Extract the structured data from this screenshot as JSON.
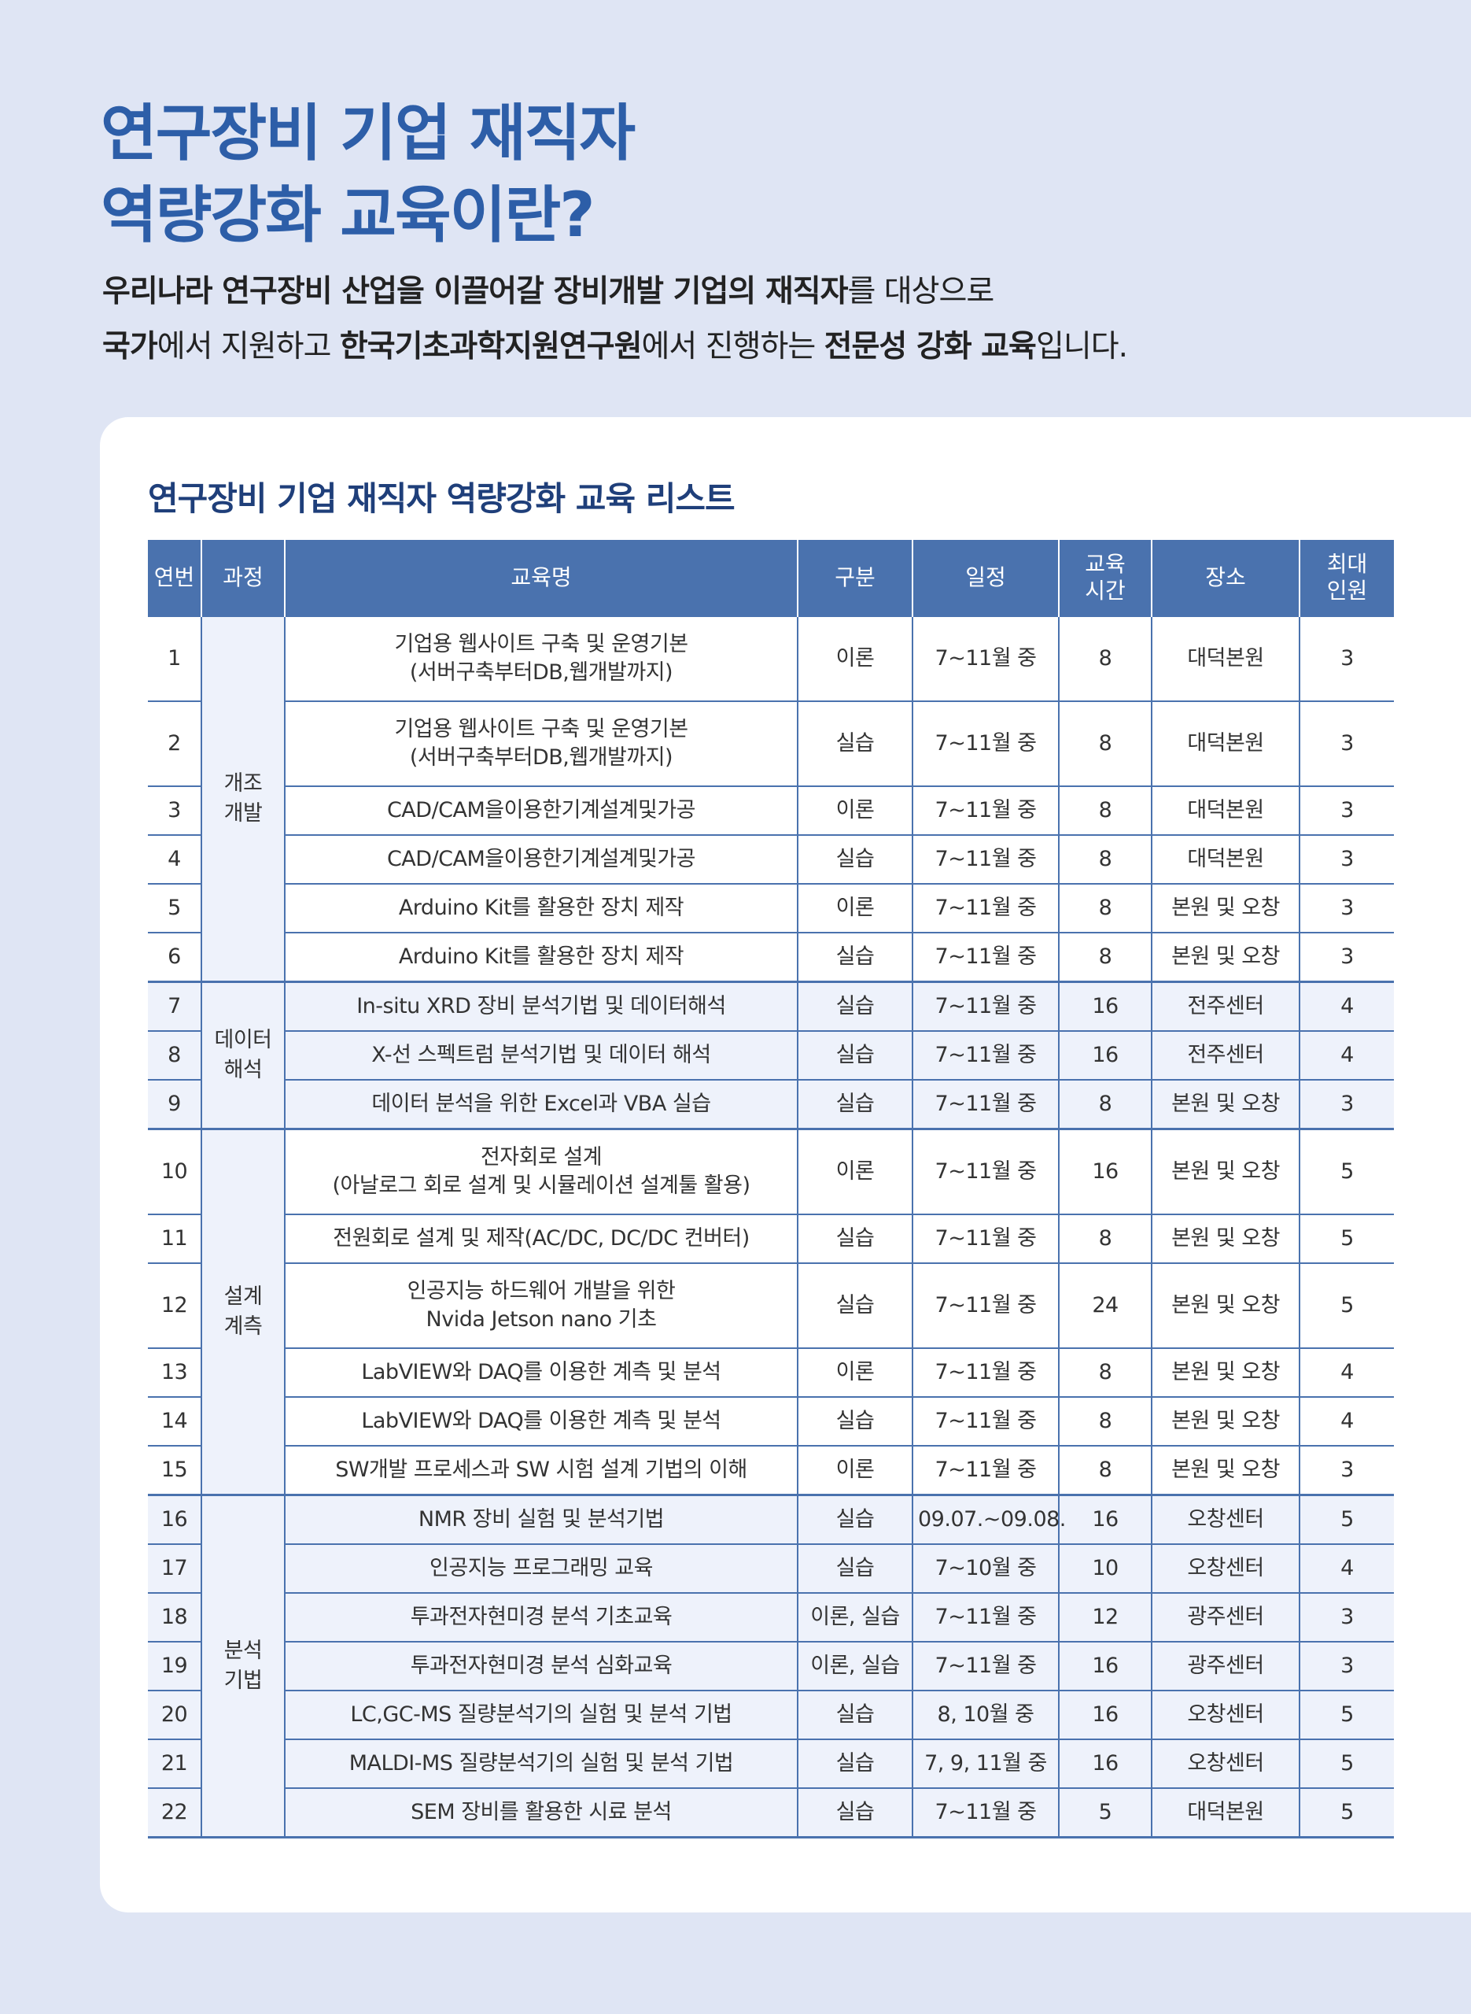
{
  "hero": {
    "title_line1": "연구장비 기업 재직자",
    "title_line2": "역량강화 교육이란?"
  },
  "intro": {
    "l1_b1": "우리나라 연구장비 산업을 이끌어갈 장비개발 기업의 재직자",
    "l1_t1": "를 대상으로",
    "l2_b1": "국가",
    "l2_t1": "에서 지원하고 ",
    "l2_b2": "한국기초과학지원연구원",
    "l2_t2": "에서 진행하는 ",
    "l2_b3": "전문성 강화 교육",
    "l2_t3": "입니다."
  },
  "list_title": "연구장비 기업 재직자 역량강화 교육 리스트",
  "table": {
    "headers": {
      "no": "연번",
      "course": "과정",
      "name": "교육명",
      "type": "구분",
      "schedule": "일정",
      "hours_l1": "교육",
      "hours_l2": "시간",
      "place": "장소",
      "max_l1": "최대",
      "max_l2": "인원"
    },
    "groups": [
      {
        "l1": "개조",
        "l2": "개발"
      },
      {
        "l1": "데이터",
        "l2": "해석"
      },
      {
        "l1": "설계",
        "l2": "계측"
      },
      {
        "l1": "분석",
        "l2": "기법"
      }
    ],
    "rows": [
      {
        "no": "1",
        "name_l1": "기업용 웹사이트 구축 및 운영기본",
        "name_l2": "(서버구축부터DB,웹개발까지)",
        "type": "이론",
        "schedule": "7~11월 중",
        "hours": "8",
        "place": "대덕본원",
        "max": "3"
      },
      {
        "no": "2",
        "name_l1": "기업용 웹사이트 구축 및 운영기본",
        "name_l2": "(서버구축부터DB,웹개발까지)",
        "type": "실습",
        "schedule": "7~11월 중",
        "hours": "8",
        "place": "대덕본원",
        "max": "3"
      },
      {
        "no": "3",
        "name_l1": "CAD/CAM을이용한기계설계및가공",
        "type": "이론",
        "schedule": "7~11월 중",
        "hours": "8",
        "place": "대덕본원",
        "max": "3"
      },
      {
        "no": "4",
        "name_l1": "CAD/CAM을이용한기계설계및가공",
        "type": "실습",
        "schedule": "7~11월 중",
        "hours": "8",
        "place": "대덕본원",
        "max": "3"
      },
      {
        "no": "5",
        "name_l1": "Arduino Kit를 활용한 장치 제작",
        "type": "이론",
        "schedule": "7~11월 중",
        "hours": "8",
        "place": "본원 및 오창",
        "max": "3"
      },
      {
        "no": "6",
        "name_l1": "Arduino Kit를 활용한 장치 제작",
        "type": "실습",
        "schedule": "7~11월 중",
        "hours": "8",
        "place": "본원 및 오창",
        "max": "3"
      },
      {
        "no": "7",
        "name_l1": "In-situ XRD 장비 분석기법 및 데이터해석",
        "type": "실습",
        "schedule": "7~11월 중",
        "hours": "16",
        "place": "전주센터",
        "max": "4"
      },
      {
        "no": "8",
        "name_l1": "X-선 스펙트럼 분석기법 및 데이터 해석",
        "type": "실습",
        "schedule": "7~11월 중",
        "hours": "16",
        "place": "전주센터",
        "max": "4"
      },
      {
        "no": "9",
        "name_l1": "데이터 분석을 위한 Excel과 VBA 실습",
        "type": "실습",
        "schedule": "7~11월 중",
        "hours": "8",
        "place": "본원 및 오창",
        "max": "3"
      },
      {
        "no": "10",
        "name_l1": "전자회로 설계",
        "name_l2": "(아날로그 회로 설계 및 시뮬레이션 설계툴 활용)",
        "type": "이론",
        "schedule": "7~11월 중",
        "hours": "16",
        "place": "본원 및 오창",
        "max": "5"
      },
      {
        "no": "11",
        "name_l1": "전원회로 설계 및 제작(AC/DC, DC/DC 컨버터)",
        "type": "실습",
        "schedule": "7~11월 중",
        "hours": "8",
        "place": "본원 및 오창",
        "max": "5"
      },
      {
        "no": "12",
        "name_l1": "인공지능 하드웨어 개발을 위한",
        "name_l2": "Nvida Jetson nano 기초",
        "type": "실습",
        "schedule": "7~11월 중",
        "hours": "24",
        "place": "본원 및 오창",
        "max": "5"
      },
      {
        "no": "13",
        "name_l1": "LabVIEW와 DAQ를 이용한 계측 및 분석",
        "type": "이론",
        "schedule": "7~11월 중",
        "hours": "8",
        "place": "본원 및 오창",
        "max": "4"
      },
      {
        "no": "14",
        "name_l1": "LabVIEW와 DAQ를 이용한 계측 및 분석",
        "type": "실습",
        "schedule": "7~11월 중",
        "hours": "8",
        "place": "본원 및 오창",
        "max": "4"
      },
      {
        "no": "15",
        "name_l1": "SW개발 프로세스과 SW 시험 설계 기법의 이해",
        "type": "이론",
        "schedule": "7~11월 중",
        "hours": "8",
        "place": "본원 및 오창",
        "max": "3"
      },
      {
        "no": "16",
        "name_l1": "NMR 장비 실험 및 분석기법",
        "type": "실습",
        "schedule": "09.07.~09.08.",
        "hours": "16",
        "place": "오창센터",
        "max": "5"
      },
      {
        "no": "17",
        "name_l1": "인공지능 프로그래밍 교육",
        "type": "실습",
        "schedule": "7~10월 중",
        "hours": "10",
        "place": "오창센터",
        "max": "4"
      },
      {
        "no": "18",
        "name_l1": "투과전자현미경 분석 기초교육",
        "type": "이론, 실습",
        "schedule": "7~11월 중",
        "hours": "12",
        "place": "광주센터",
        "max": "3"
      },
      {
        "no": "19",
        "name_l1": "투과전자현미경 분석 심화교육",
        "type": "이론, 실습",
        "schedule": "7~11월 중",
        "hours": "16",
        "place": "광주센터",
        "max": "3"
      },
      {
        "no": "20",
        "name_l1": "LC,GC-MS 질량분석기의 실험 및 분석 기법",
        "type": "실습",
        "schedule": "8, 10월 중",
        "hours": "16",
        "place": "오창센터",
        "max": "5"
      },
      {
        "no": "21",
        "name_l1": "MALDI-MS 질량분석기의 실험 및 분석 기법",
        "type": "실습",
        "schedule": "7, 9, 11월 중",
        "hours": "16",
        "place": "오창센터",
        "max": "5"
      },
      {
        "no": "22",
        "name_l1": "SEM 장비를 활용한 시료 분석",
        "type": "실습",
        "schedule": "7~11월 중",
        "hours": "5",
        "place": "대덕본원",
        "max": "5"
      }
    ]
  },
  "colors": {
    "page_bg": "#dfe5f4",
    "title_blue": "#2d5ea8",
    "header_blue": "#4a72ae",
    "list_title_navy": "#1f3f7a",
    "row_shade": "#eef2fb"
  }
}
